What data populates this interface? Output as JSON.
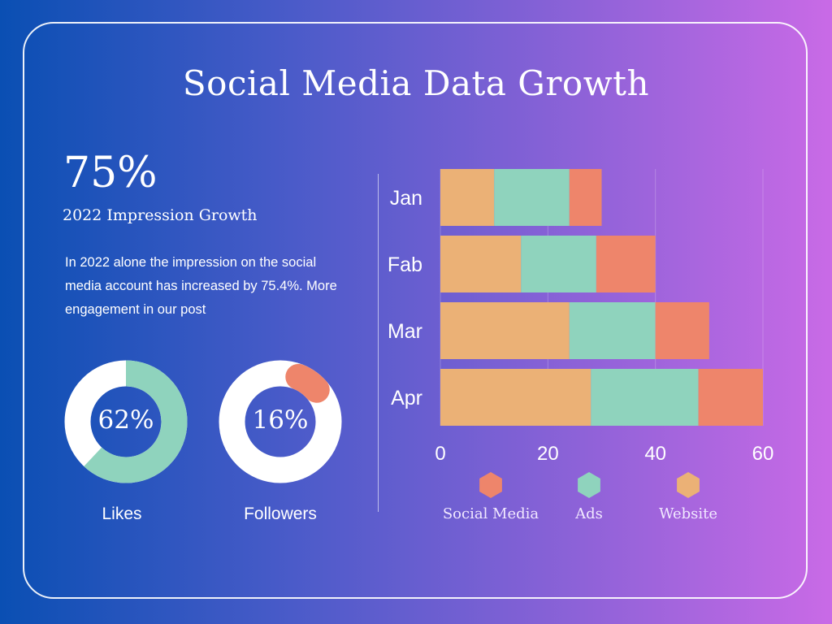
{
  "title": "Social Media Data Growth",
  "stat": {
    "value": "75%",
    "label": "2022 Impression Growth"
  },
  "description": "In 2022 alone the impression on the social media account has increased by 75.4%. More engagement in our post",
  "donuts": [
    {
      "name": "Likes",
      "percent": 62,
      "center_text": "62%",
      "color": "#8fd3bd"
    },
    {
      "name": "Followers",
      "percent": 16,
      "center_text": "16%",
      "color": "#ee856b"
    }
  ],
  "colors": {
    "social_media": "#ee856b",
    "ads": "#8fd3bd",
    "website": "#ebb176"
  },
  "chart_data": {
    "type": "bar",
    "orientation": "horizontal",
    "stacked": true,
    "categories": [
      "Jan",
      "Fab",
      "Mar",
      "Apr"
    ],
    "series": [
      {
        "name": "Website",
        "values": [
          10,
          15,
          24,
          28
        ],
        "color": "#ebb176"
      },
      {
        "name": "Ads",
        "values": [
          14,
          14,
          16,
          20
        ],
        "color": "#8fd3bd"
      },
      {
        "name": "Social Media",
        "values": [
          6,
          11,
          10,
          12
        ],
        "color": "#ee856b"
      }
    ],
    "xlim": [
      0,
      60
    ],
    "xticks": [
      0,
      20,
      40,
      60
    ],
    "legend": [
      "Social Media",
      "Ads",
      "Website"
    ],
    "legend_position": "bottom"
  }
}
